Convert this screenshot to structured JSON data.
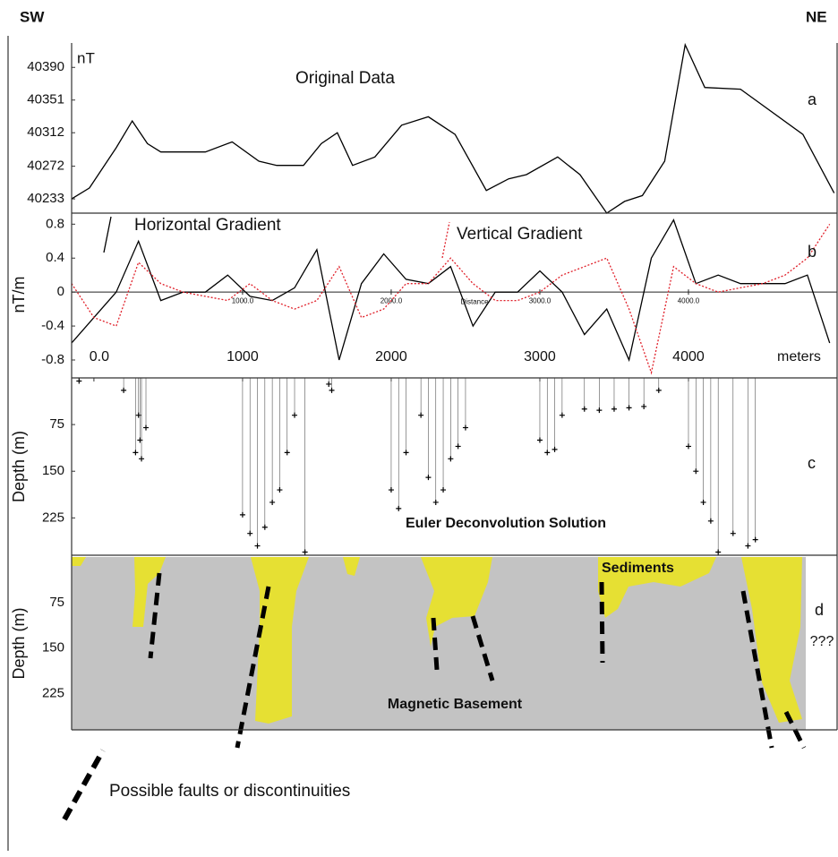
{
  "header": {
    "left": "SW",
    "right": "NE"
  },
  "legend": {
    "text": "Possible faults or discontinuities"
  },
  "chart_data": [
    {
      "type": "line",
      "title": "Original Data",
      "y_label": "nT",
      "panel_label": "a",
      "color": "#000000",
      "x": [
        -150,
        -30,
        150,
        258,
        360,
        450,
        750,
        930,
        1110,
        1230,
        1410,
        1530,
        1638,
        1740,
        1890,
        2070,
        2250,
        2430,
        2640,
        2790,
        2910,
        3120,
        3270,
        3450,
        3570,
        3690,
        3840,
        3978,
        4110,
        4350,
        4770,
        4980
      ],
      "values": [
        40233,
        40246,
        40294,
        40326,
        40299,
        40289,
        40289,
        40301,
        40278,
        40273,
        40273,
        40299,
        40312,
        40273,
        40283,
        40321,
        40331,
        40310,
        40243,
        40257,
        40262,
        40283,
        40262,
        40216,
        40230,
        40237,
        40278,
        40417,
        40366,
        40364,
        40310,
        40240
      ],
      "xlim": [
        -150,
        5000
      ],
      "ylim": [
        40216,
        40417
      ],
      "yticks": [
        40233,
        40272,
        40312,
        40351,
        40390
      ]
    },
    {
      "type": "line",
      "y_label": "nT/m",
      "panel_label": "b",
      "x_label": "Distance",
      "x": [
        -150,
        0,
        150,
        300,
        450,
        600,
        750,
        900,
        1050,
        1200,
        1350,
        1500,
        1650,
        1800,
        1950,
        2100,
        2250,
        2400,
        2550,
        2700,
        2850,
        3000,
        3150,
        3300,
        3450,
        3600,
        3750,
        3900,
        4050,
        4200,
        4350,
        4500,
        4650,
        4800,
        4950
      ],
      "series": [
        {
          "name": "Horizontal Gradient",
          "color": "#000000",
          "dash": "solid",
          "values": [
            -0.6,
            -0.3,
            0.0,
            0.6,
            -0.1,
            0.0,
            0.0,
            0.2,
            -0.05,
            -0.1,
            0.05,
            0.5,
            -0.8,
            0.1,
            0.45,
            0.15,
            0.1,
            0.3,
            -0.4,
            0.0,
            0.0,
            0.25,
            0.0,
            -0.5,
            -0.2,
            -0.8,
            0.4,
            0.85,
            0.1,
            0.2,
            0.1,
            0.1,
            0.1,
            0.2,
            -0.6
          ]
        },
        {
          "name": "Vertical Gradient",
          "color": "#e0202a",
          "dash": "dotted",
          "values": [
            0.1,
            -0.3,
            -0.4,
            0.35,
            0.1,
            0.0,
            -0.05,
            -0.1,
            0.1,
            -0.1,
            -0.2,
            -0.1,
            0.3,
            -0.3,
            -0.2,
            0.1,
            0.1,
            0.4,
            0.1,
            -0.1,
            -0.1,
            0.0,
            0.2,
            0.3,
            0.4,
            -0.2,
            -0.95,
            0.3,
            0.1,
            0.0,
            0.05,
            0.1,
            0.2,
            0.4,
            0.8
          ]
        }
      ],
      "xlim": [
        -150,
        5000
      ],
      "ylim": [
        -0.99,
        0.93
      ],
      "yticks": [
        0.8,
        0.4,
        0,
        -0.4,
        -0.8
      ],
      "xticks": [
        {
          "value": 1000,
          "label": "1000.0"
        },
        {
          "value": 2000,
          "label": "2000.0"
        },
        {
          "value": 3000,
          "label": "3000.0"
        },
        {
          "value": 4000,
          "label": "4000.0"
        }
      ]
    },
    {
      "type": "scatter",
      "title": "Euler Deconvolution Solution",
      "y_label": "Depth (m)",
      "x_label": "meters",
      "panel_label": "c",
      "color": "#000000",
      "x": [
        -100,
        200,
        300,
        310,
        320,
        280,
        350,
        1000,
        1050,
        1100,
        1150,
        1200,
        1250,
        1300,
        1350,
        1420,
        1600,
        1580,
        2000,
        2050,
        2100,
        2250,
        2300,
        2350,
        2400,
        2450,
        2500,
        2200,
        3000,
        3050,
        3100,
        3150,
        3300,
        3400,
        3500,
        3600,
        3700,
        3800,
        4000,
        4050,
        4100,
        4150,
        4200,
        4300,
        4400,
        4450
      ],
      "values": [
        5,
        20,
        60,
        100,
        130,
        120,
        80,
        220,
        250,
        270,
        240,
        200,
        180,
        120,
        60,
        280,
        20,
        10,
        180,
        210,
        120,
        160,
        200,
        180,
        130,
        110,
        80,
        60,
        100,
        120,
        115,
        60,
        50,
        52,
        50,
        48,
        46,
        20,
        110,
        150,
        200,
        230,
        280,
        250,
        270,
        260
      ],
      "xlim": [
        -150,
        5000
      ],
      "ylim": [
        0,
        285
      ],
      "y_inverted": true,
      "yticks": [
        75,
        150,
        225
      ],
      "xticks": [
        {
          "value": 0,
          "label": "0.0"
        },
        1000,
        2000,
        3000,
        4000
      ]
    },
    {
      "type": "section",
      "y_label": "Depth (m)",
      "panel_label": "d",
      "sediments_label": "Sediments",
      "basement_label": "Magnetic Basement",
      "unknown_label": "???",
      "sediment_color": "#e6e033",
      "basement_color": "#c3c3c3",
      "ylim": [
        0,
        285
      ],
      "y_inverted": true,
      "yticks": [
        75,
        150,
        225
      ]
    }
  ]
}
